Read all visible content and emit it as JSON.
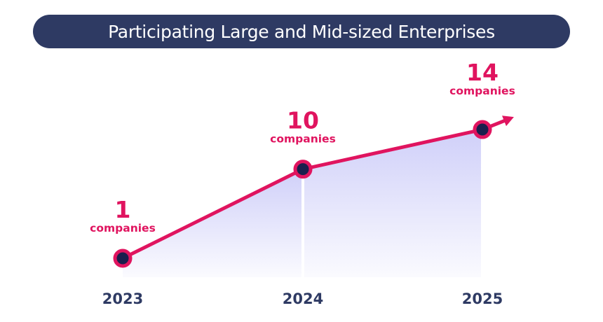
{
  "chart_data": {
    "type": "line",
    "title": "Participating Large and Mid-sized Enterprises",
    "categories": [
      "2023",
      "2024",
      "2025"
    ],
    "series": [
      {
        "values": [
          1,
          10,
          14
        ]
      }
    ],
    "value_unit": "companies",
    "xlabel": "",
    "ylabel": "",
    "grid": false,
    "legend": "none",
    "colors": {
      "line": "#e0145f",
      "point_fill": "#1a1f4d",
      "area": "#8e8ef0",
      "title_bg": "#2e3a63",
      "value_text": "#e0145f",
      "year_text": "#2e3a63"
    }
  }
}
